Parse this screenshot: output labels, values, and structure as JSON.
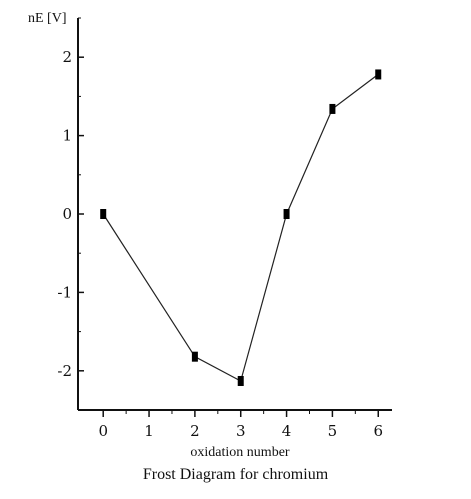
{
  "chart_data": {
    "type": "line",
    "title": "Frost Diagram for chromium",
    "xlabel": "oxidation number",
    "ylabel": "nE [V]",
    "x": [
      0,
      2,
      3,
      4,
      5,
      6
    ],
    "series": [
      {
        "values": [
          0,
          -1.82,
          -2.13,
          0,
          1.34,
          1.78
        ]
      }
    ],
    "xticks": [
      "0",
      "1",
      "2",
      "3",
      "4",
      "5",
      "6"
    ],
    "yticks": [
      "2",
      "1",
      "0",
      "-1",
      "-2"
    ],
    "xlim": [
      -0.55,
      6.3
    ],
    "ylim": [
      -2.5,
      2.5
    ],
    "grid": false,
    "line_color": "#222222",
    "marker_color": "#000000"
  }
}
